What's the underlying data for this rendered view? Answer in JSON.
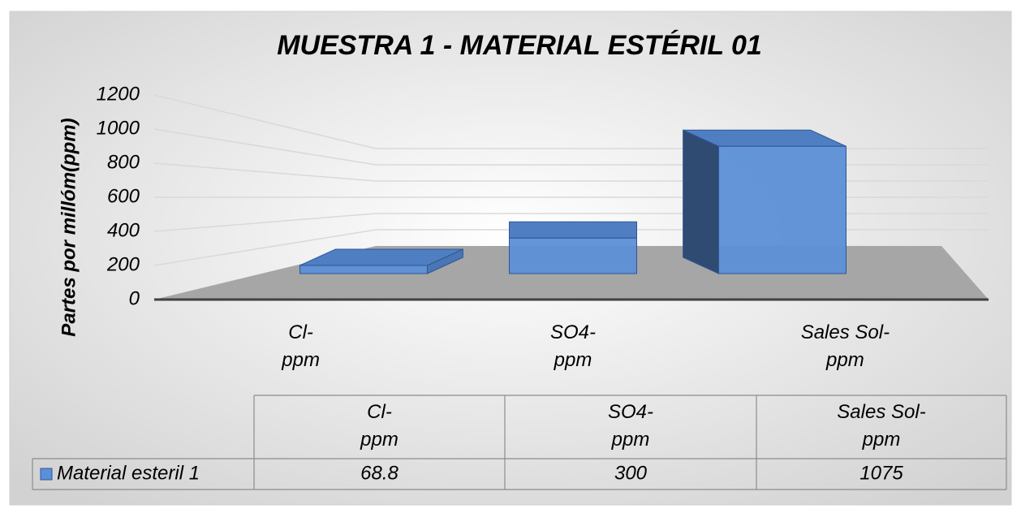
{
  "chart_data": {
    "type": "bar3d",
    "title": "MUESTRA 1 - MATERIAL ESTÉRIL 01",
    "y_label": "Partes por millóm(ppm)",
    "categories": [
      "Cl-ppm",
      "SO4-ppm",
      "Sales Sol-ppm"
    ],
    "series": [
      {
        "name": "Material esteril 1",
        "color": "#5b8fd6",
        "values": [
          68.8,
          300,
          1075
        ]
      }
    ],
    "ylim": [
      0,
      1200
    ],
    "yticks": [
      0,
      200,
      400,
      600,
      800,
      1000,
      1200
    ],
    "grid": true,
    "data_table": true
  }
}
